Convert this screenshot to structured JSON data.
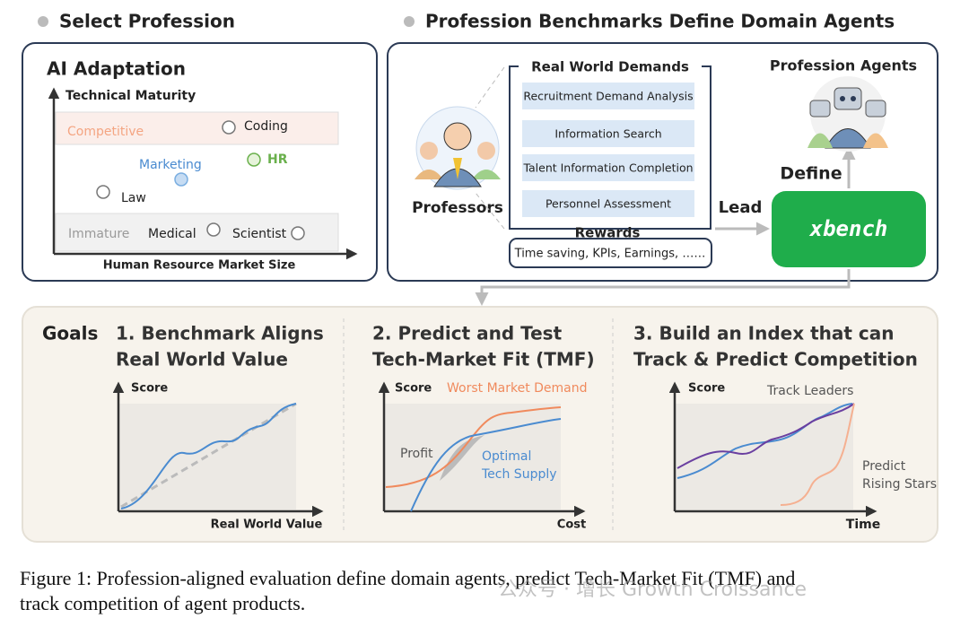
{
  "headings": [
    "Select Profession",
    "Profession Benchmarks Define Domain Agents"
  ],
  "adaptation": {
    "title": "AI Adaptation",
    "y_axis": "Technical Maturity",
    "x_axis": "Human Resource Market Size",
    "bands": [
      "Competitive",
      "Immature"
    ],
    "professions": [
      "Coding",
      "Marketing",
      "HR",
      "Law",
      "Medical",
      "Scientist"
    ]
  },
  "benchmarks": {
    "professors": "Professors",
    "demands_title": "Real World Demands",
    "demands": [
      "Recruitment Demand Analysis",
      "Information Search",
      "Talent Information Completion",
      "Personnel Assessment"
    ],
    "rewards_title": "Rewards",
    "rewards": "Time saving, KPIs, Earnings, ……",
    "lead": "Lead",
    "xbench": "xbench",
    "define": "Define",
    "agents": "Profession Agents"
  },
  "goals": {
    "title": "Goals",
    "items": [
      {
        "title": [
          "1. Benchmark Aligns",
          "Real World Value"
        ],
        "labels": [
          "Score",
          "Real World Value"
        ]
      },
      {
        "title": [
          "2. Predict and Test",
          "Tech-Market Fit (TMF)"
        ],
        "labels": [
          "Score",
          "Worst Market Demand",
          "Profit",
          "Optimal",
          "Tech Supply",
          "Cost"
        ]
      },
      {
        "title": [
          "3. Build an Index that can",
          "Track & Predict Competition"
        ],
        "labels": [
          "Score",
          "Track Leaders",
          "Predict",
          "Rising Stars",
          "Time"
        ]
      }
    ]
  },
  "caption": [
    "Figure 1: Profession-aligned evaluation define domain agents, predict Tech-Market Fit (TMF) and",
    "track competition of agent products."
  ],
  "watermark": "公众号 · 增长 Growth Croissance"
}
